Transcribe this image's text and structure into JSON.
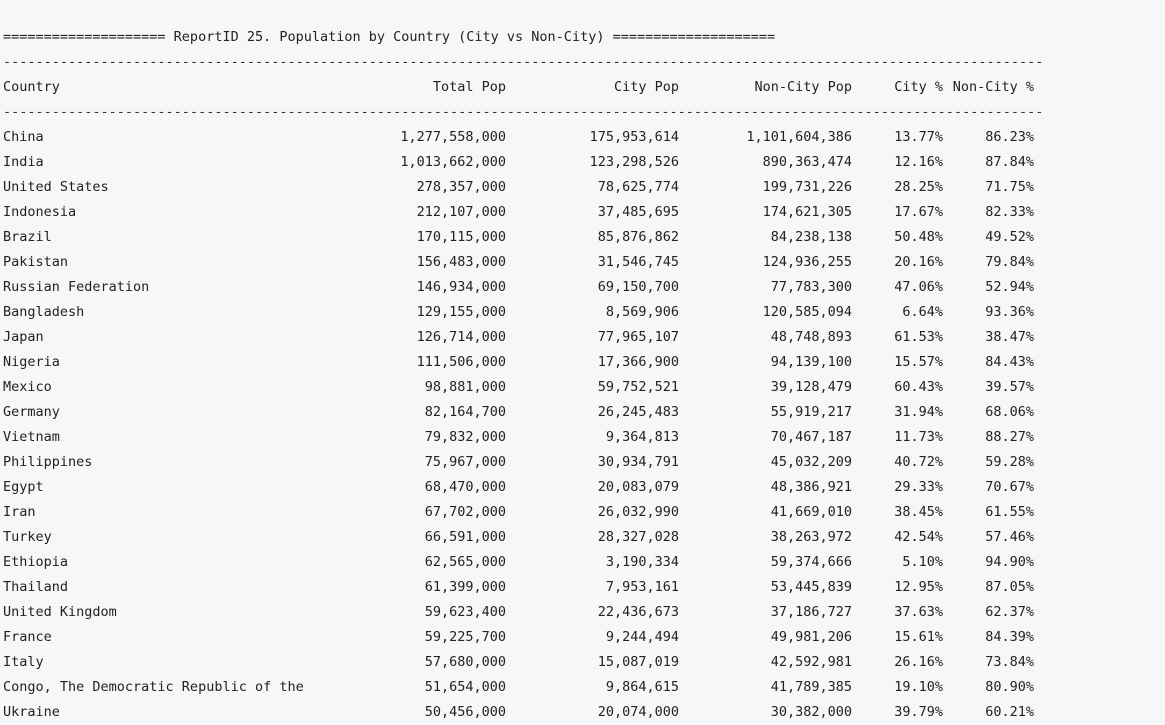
{
  "title_line": "==================== ReportID 25. Population by Country (City vs Non-City) ====================",
  "separator_line": "-------------------------------------------------------------------------------------------------------------------------------------------------",
  "headers": {
    "country": "Country",
    "total": "Total Pop",
    "city": "City Pop",
    "noncity": "Non-City Pop",
    "citypct": "City %",
    "ncpct": "Non-City %"
  },
  "rows": [
    {
      "country": "China",
      "total": "1,277,558,000",
      "city": "175,953,614",
      "noncity": "1,101,604,386",
      "citypct": "13.77%",
      "ncpct": "86.23%"
    },
    {
      "country": "India",
      "total": "1,013,662,000",
      "city": "123,298,526",
      "noncity": "890,363,474",
      "citypct": "12.16%",
      "ncpct": "87.84%"
    },
    {
      "country": "United States",
      "total": "278,357,000",
      "city": "78,625,774",
      "noncity": "199,731,226",
      "citypct": "28.25%",
      "ncpct": "71.75%"
    },
    {
      "country": "Indonesia",
      "total": "212,107,000",
      "city": "37,485,695",
      "noncity": "174,621,305",
      "citypct": "17.67%",
      "ncpct": "82.33%"
    },
    {
      "country": "Brazil",
      "total": "170,115,000",
      "city": "85,876,862",
      "noncity": "84,238,138",
      "citypct": "50.48%",
      "ncpct": "49.52%"
    },
    {
      "country": "Pakistan",
      "total": "156,483,000",
      "city": "31,546,745",
      "noncity": "124,936,255",
      "citypct": "20.16%",
      "ncpct": "79.84%"
    },
    {
      "country": "Russian Federation",
      "total": "146,934,000",
      "city": "69,150,700",
      "noncity": "77,783,300",
      "citypct": "47.06%",
      "ncpct": "52.94%"
    },
    {
      "country": "Bangladesh",
      "total": "129,155,000",
      "city": "8,569,906",
      "noncity": "120,585,094",
      "citypct": "6.64%",
      "ncpct": "93.36%"
    },
    {
      "country": "Japan",
      "total": "126,714,000",
      "city": "77,965,107",
      "noncity": "48,748,893",
      "citypct": "61.53%",
      "ncpct": "38.47%"
    },
    {
      "country": "Nigeria",
      "total": "111,506,000",
      "city": "17,366,900",
      "noncity": "94,139,100",
      "citypct": "15.57%",
      "ncpct": "84.43%"
    },
    {
      "country": "Mexico",
      "total": "98,881,000",
      "city": "59,752,521",
      "noncity": "39,128,479",
      "citypct": "60.43%",
      "ncpct": "39.57%"
    },
    {
      "country": "Germany",
      "total": "82,164,700",
      "city": "26,245,483",
      "noncity": "55,919,217",
      "citypct": "31.94%",
      "ncpct": "68.06%"
    },
    {
      "country": "Vietnam",
      "total": "79,832,000",
      "city": "9,364,813",
      "noncity": "70,467,187",
      "citypct": "11.73%",
      "ncpct": "88.27%"
    },
    {
      "country": "Philippines",
      "total": "75,967,000",
      "city": "30,934,791",
      "noncity": "45,032,209",
      "citypct": "40.72%",
      "ncpct": "59.28%"
    },
    {
      "country": "Egypt",
      "total": "68,470,000",
      "city": "20,083,079",
      "noncity": "48,386,921",
      "citypct": "29.33%",
      "ncpct": "70.67%"
    },
    {
      "country": "Iran",
      "total": "67,702,000",
      "city": "26,032,990",
      "noncity": "41,669,010",
      "citypct": "38.45%",
      "ncpct": "61.55%"
    },
    {
      "country": "Turkey",
      "total": "66,591,000",
      "city": "28,327,028",
      "noncity": "38,263,972",
      "citypct": "42.54%",
      "ncpct": "57.46%"
    },
    {
      "country": "Ethiopia",
      "total": "62,565,000",
      "city": "3,190,334",
      "noncity": "59,374,666",
      "citypct": "5.10%",
      "ncpct": "94.90%"
    },
    {
      "country": "Thailand",
      "total": "61,399,000",
      "city": "7,953,161",
      "noncity": "53,445,839",
      "citypct": "12.95%",
      "ncpct": "87.05%"
    },
    {
      "country": "United Kingdom",
      "total": "59,623,400",
      "city": "22,436,673",
      "noncity": "37,186,727",
      "citypct": "37.63%",
      "ncpct": "62.37%"
    },
    {
      "country": "France",
      "total": "59,225,700",
      "city": "9,244,494",
      "noncity": "49,981,206",
      "citypct": "15.61%",
      "ncpct": "84.39%"
    },
    {
      "country": "Italy",
      "total": "57,680,000",
      "city": "15,087,019",
      "noncity": "42,592,981",
      "citypct": "26.16%",
      "ncpct": "73.84%"
    },
    {
      "country": "Congo, The Democratic Republic of the",
      "total": "51,654,000",
      "city": "9,864,615",
      "noncity": "41,789,385",
      "citypct": "19.10%",
      "ncpct": "80.90%"
    },
    {
      "country": "Ukraine",
      "total": "50,456,000",
      "city": "20,074,000",
      "noncity": "30,382,000",
      "citypct": "39.79%",
      "ncpct": "60.21%"
    }
  ]
}
